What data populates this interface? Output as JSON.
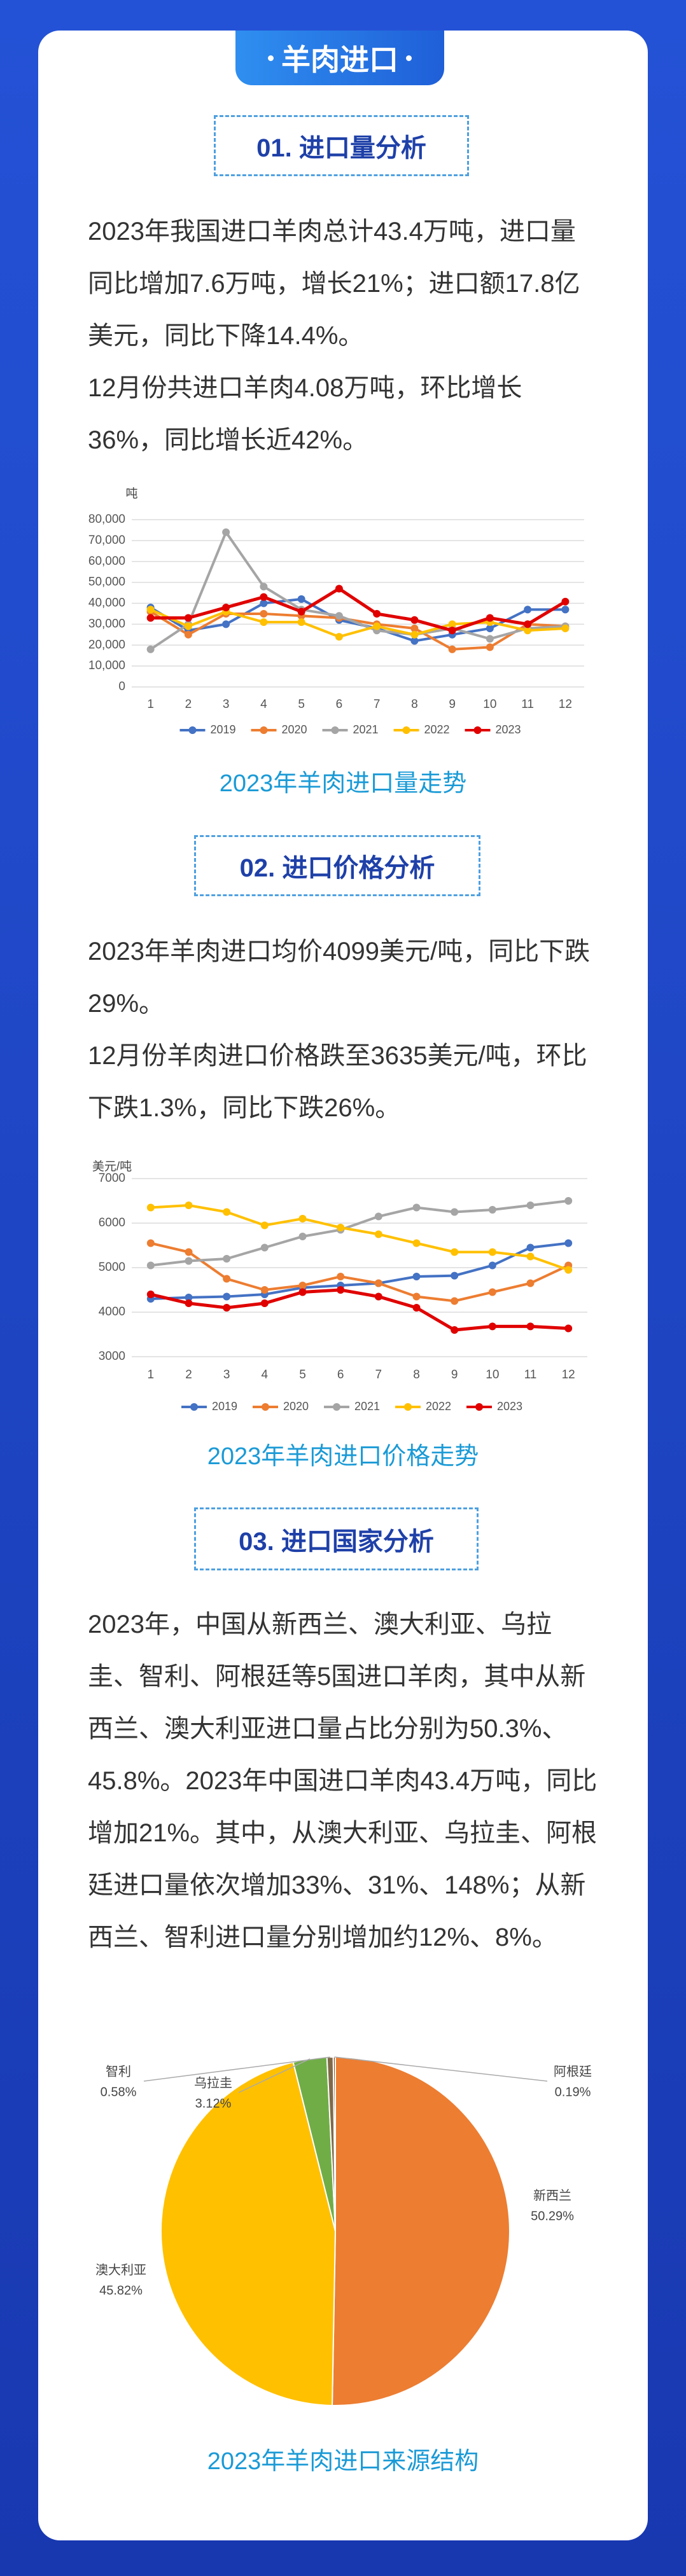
{
  "header": {
    "title": "羊肉进口"
  },
  "sections": [
    {
      "heading": "01. 进口量分析",
      "paragraphs": [
        "2023年我国进口羊肉总计43.4万吨，进口量同比增加7.6万吨，增长21%；进口额17.8亿美元，同比下降14.4%。",
        "12月份共进口羊肉4.08万吨，环比增长36%，同比增长近42%。"
      ]
    },
    {
      "heading": "02. 进口价格分析",
      "paragraphs": [
        "2023年羊肉进口均价4099美元/吨，同比下跌29%。",
        "12月份羊肉进口价格跌至3635美元/吨，环比下跌1.3%，同比下跌26%。"
      ]
    },
    {
      "heading": "03. 进口国家分析",
      "paragraphs": [
        "2023年，中国从新西兰、澳大利亚、乌拉圭、智利、阿根廷等5国进口羊肉，其中从新西兰、澳大利亚进口量占比分别为50.3%、45.8%。2023年中国进口羊肉43.4万吨，同比增加21%。其中，从澳大利亚、乌拉圭、阿根廷进口量依次增加33%、31%、148%；从新西兰、智利进口量分别增加约12%、8%。"
      ]
    }
  ],
  "chart_data": [
    {
      "type": "line",
      "title": "2023年羊肉进口量走势",
      "ylabel": "吨",
      "categories": [
        "1",
        "2",
        "3",
        "4",
        "5",
        "6",
        "7",
        "8",
        "9",
        "10",
        "11",
        "12"
      ],
      "ylim": [
        0,
        80000
      ],
      "yticks": [
        0,
        {
          "value": 10000,
          "label": "10,000"
        },
        {
          "value": 20000,
          "label": "20,000"
        },
        {
          "value": 30000,
          "label": "30,000"
        },
        {
          "value": 40000,
          "label": "40,000"
        },
        {
          "value": 50000,
          "label": "50,000"
        },
        {
          "value": 60000,
          "label": "60,000"
        },
        {
          "value": 70000,
          "label": "70,000"
        },
        {
          "value": 80000,
          "label": "80,000"
        }
      ],
      "grid": true,
      "series": [
        {
          "name": "2019",
          "color": "#4472c4",
          "values": [
            38000,
            27000,
            30000,
            40000,
            42000,
            32000,
            28000,
            22000,
            25000,
            28000,
            37000,
            37000
          ]
        },
        {
          "name": "2020",
          "color": "#ed7d31",
          "values": [
            36000,
            25000,
            35000,
            35000,
            34000,
            33000,
            30000,
            28000,
            18000,
            19000,
            30000,
            29000
          ]
        },
        {
          "name": "2021",
          "color": "#a5a5a5",
          "values": [
            18000,
            30000,
            74000,
            48000,
            37000,
            34000,
            27000,
            25000,
            28000,
            23000,
            28000,
            29000
          ]
        },
        {
          "name": "2022",
          "color": "#ffc000",
          "values": [
            37000,
            29000,
            36000,
            31000,
            31000,
            24000,
            29000,
            25000,
            30000,
            31000,
            27000,
            28000
          ]
        },
        {
          "name": "2023",
          "color": "#e00000",
          "values": [
            33000,
            33000,
            38000,
            43000,
            36000,
            47000,
            35000,
            32000,
            27000,
            33000,
            30000,
            40800
          ]
        }
      ]
    },
    {
      "type": "line",
      "title": "2023年羊肉进口价格走势",
      "ylabel": "美元/吨",
      "categories": [
        "1",
        "2",
        "3",
        "4",
        "5",
        "6",
        "7",
        "8",
        "9",
        "10",
        "11",
        "12"
      ],
      "ylim": [
        3000,
        7000
      ],
      "yticks": [
        3000,
        4000,
        5000,
        6000,
        7000
      ],
      "grid": true,
      "series": [
        {
          "name": "2019",
          "color": "#4472c4",
          "values": [
            4300,
            4330,
            4350,
            4400,
            4550,
            4600,
            4650,
            4800,
            4820,
            5050,
            5450,
            5550
          ]
        },
        {
          "name": "2020",
          "color": "#ed7d31",
          "values": [
            5550,
            5350,
            4750,
            4500,
            4600,
            4800,
            4650,
            4350,
            4250,
            4450,
            4650,
            5050
          ]
        },
        {
          "name": "2021",
          "color": "#a5a5a5",
          "values": [
            5050,
            5150,
            5200,
            5450,
            5700,
            5850,
            6150,
            6350,
            6250,
            6300,
            6400,
            6500
          ]
        },
        {
          "name": "2022",
          "color": "#ffc000",
          "values": [
            6350,
            6400,
            6250,
            5950,
            6100,
            5900,
            5750,
            5550,
            5350,
            5350,
            5250,
            4950
          ]
        },
        {
          "name": "2023",
          "color": "#e00000",
          "values": [
            4400,
            4200,
            4100,
            4200,
            4450,
            4500,
            4350,
            4100,
            3600,
            3680,
            3680,
            3635
          ]
        }
      ]
    },
    {
      "type": "pie",
      "title": "2023年羊肉进口来源结构",
      "categories": [
        "新西兰",
        "澳大利亚",
        "乌拉圭",
        "智利",
        "阿根廷"
      ],
      "values": [
        50.29,
        45.82,
        3.12,
        0.58,
        0.19
      ],
      "value_labels": [
        "50.29%",
        "45.82%",
        "3.12%",
        "0.58%",
        "0.19%"
      ],
      "colors": [
        "#ed7d31",
        "#ffc000",
        "#70ad47",
        "#7f6a4a",
        "#9e480e"
      ]
    }
  ]
}
